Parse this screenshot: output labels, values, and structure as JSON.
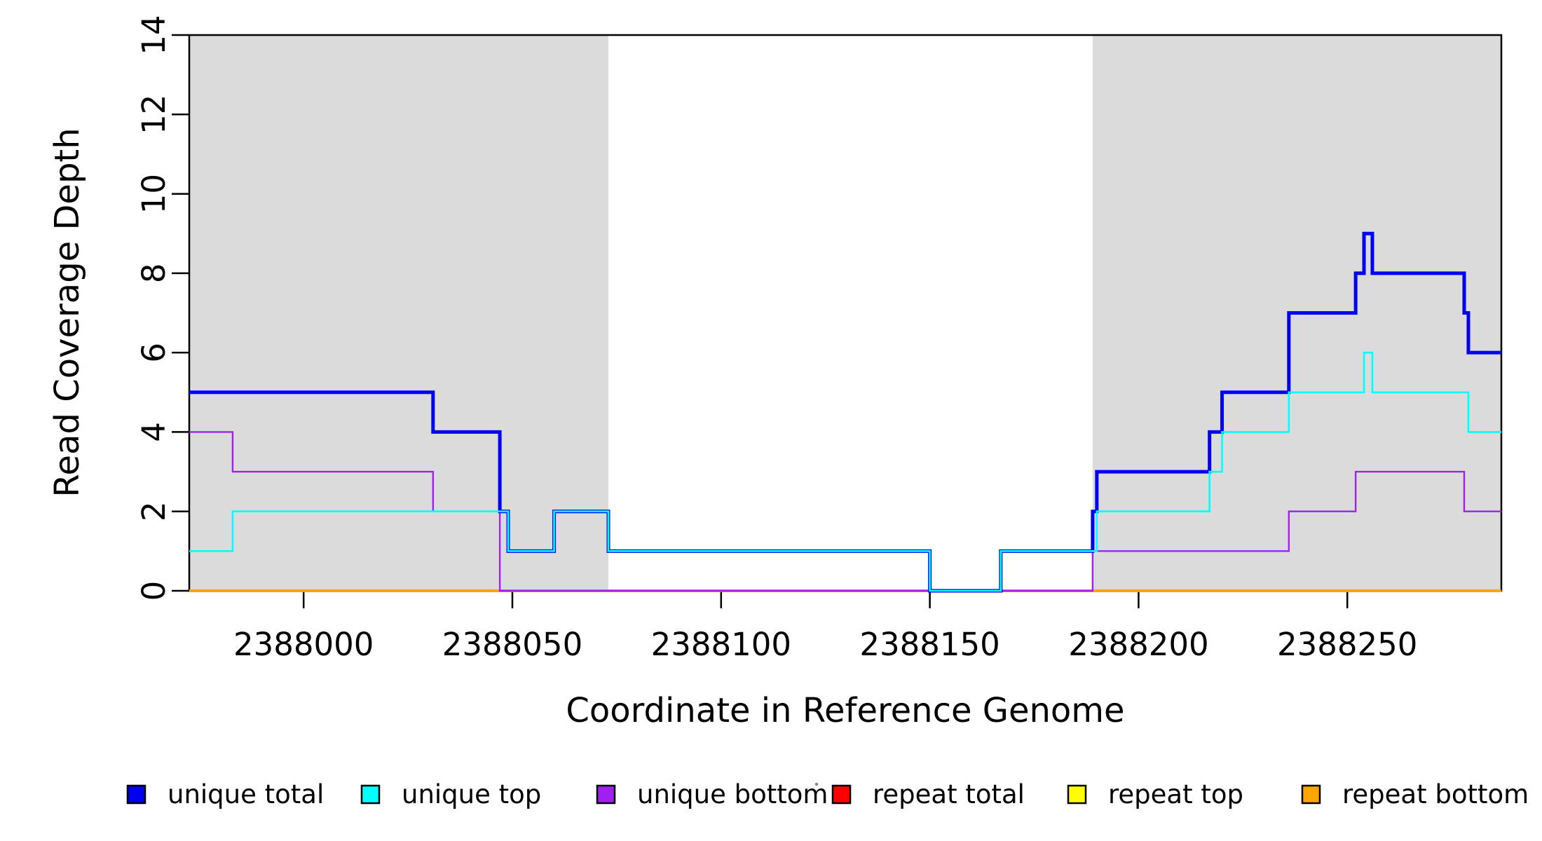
{
  "chart_data": {
    "type": "line",
    "subtype": "step",
    "title": "",
    "xlabel": "Coordinate in Reference Genome",
    "ylabel": "Read Coverage Depth",
    "xlim": [
      2387972.6,
      2388286.9
    ],
    "ylim": [
      0,
      14
    ],
    "x_ticks": [
      2388000,
      2388050,
      2388100,
      2388150,
      2388200,
      2388250
    ],
    "y_ticks": [
      0,
      2,
      4,
      6,
      8,
      10,
      12,
      14
    ],
    "grid": false,
    "background_color": "#ffffff",
    "shaded_regions": [
      {
        "x0": 2387972.6,
        "x1": 2388073,
        "color": "#DBDBDB"
      },
      {
        "x0": 2388189,
        "x1": 2388286.9,
        "color": "#DBDBDB"
      }
    ],
    "series": [
      {
        "name": "repeat total",
        "color": "#FF0000",
        "line_width": 3.8,
        "steps": [
          [
            2387972.6,
            0
          ]
        ]
      },
      {
        "name": "repeat top",
        "color": "#FFFF00",
        "line_width": 3.2,
        "steps": [
          [
            2387972.6,
            0
          ]
        ]
      },
      {
        "name": "repeat bottom",
        "color": "#FFA500",
        "line_width": 2.6,
        "steps": [
          [
            2387972.6,
            0
          ]
        ]
      },
      {
        "name": "unique bottom",
        "color": "#A020F0",
        "line_width": 2.4,
        "steps": [
          [
            2387972.6,
            4
          ],
          [
            2387983,
            3
          ],
          [
            2388031,
            2
          ],
          [
            2388047,
            0
          ],
          [
            2388189,
            1
          ],
          [
            2388236,
            2
          ],
          [
            2388252,
            3
          ],
          [
            2388278,
            2
          ]
        ]
      },
      {
        "name": "unique total",
        "color": "#0000EE",
        "line_width": 5,
        "steps": [
          [
            2387972.6,
            5
          ],
          [
            2388031,
            4
          ],
          [
            2388047,
            2
          ],
          [
            2388049,
            1
          ],
          [
            2388060,
            2
          ],
          [
            2388073,
            1
          ],
          [
            2388150,
            0
          ],
          [
            2388167,
            1
          ],
          [
            2388189,
            2
          ],
          [
            2388190,
            3
          ],
          [
            2388217,
            4
          ],
          [
            2388220,
            5
          ],
          [
            2388236,
            7
          ],
          [
            2388252,
            8
          ],
          [
            2388254,
            9
          ],
          [
            2388256,
            8
          ],
          [
            2388278,
            7
          ],
          [
            2388279,
            6
          ]
        ]
      },
      {
        "name": "unique top",
        "color": "#00FFFF",
        "line_width": 2.6,
        "steps": [
          [
            2387972.6,
            1
          ],
          [
            2387983,
            2
          ],
          [
            2388049,
            1
          ],
          [
            2388060,
            2
          ],
          [
            2388073,
            1
          ],
          [
            2388150,
            0
          ],
          [
            2388167,
            1
          ],
          [
            2388190,
            2
          ],
          [
            2388217,
            3
          ],
          [
            2388220,
            4
          ],
          [
            2388236,
            5
          ],
          [
            2388254,
            6
          ],
          [
            2388256,
            5
          ],
          [
            2388279,
            4
          ]
        ]
      }
    ],
    "legend": {
      "position": "bottom",
      "entries": [
        {
          "label": "unique total",
          "color": "#0000EE"
        },
        {
          "label": "unique top",
          "color": "#00FFFF"
        },
        {
          "label": "unique bottom",
          "color": "#A020F0"
        },
        {
          "label": "repeat total",
          "color": "#FF0000"
        },
        {
          "label": "repeat top",
          "color": "#FFFF00"
        },
        {
          "label": "repeat bottom",
          "color": "#FFA500"
        }
      ]
    }
  }
}
